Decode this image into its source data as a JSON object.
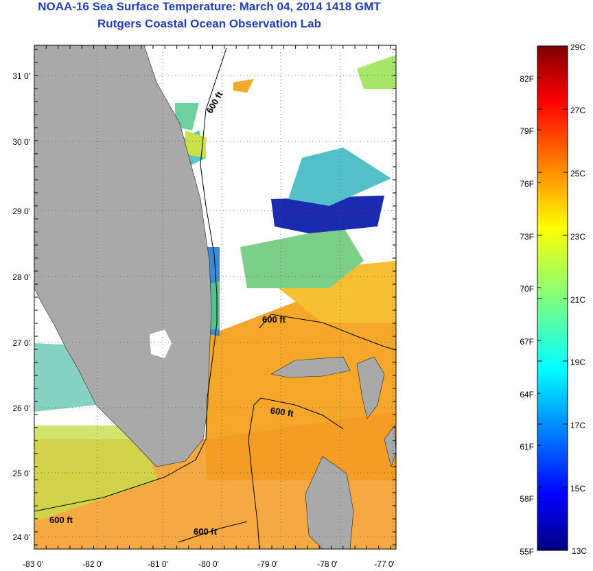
{
  "header": {
    "title": "NOAA-16 Sea Surface Temperature:  March 04, 2014 1418 GMT",
    "subtitle": "Rutgers Coastal Ocean Observation Lab"
  },
  "map": {
    "region": "Florida and Bahamas",
    "lat_labels": [
      "31 0'",
      "30 0'",
      "29 0'",
      "28 0'",
      "27 0'",
      "26 0'",
      "25 0'",
      "24 0'"
    ],
    "lon_labels": [
      "-83 0'",
      "-82 0'",
      "-81 0'",
      "-80 0'",
      "-79 0'",
      "-78 0'",
      "-77 0'"
    ],
    "contour_labels": [
      "600 ft",
      "600 ft",
      "600 ft",
      "600 ft",
      "600 ft"
    ],
    "colors": {
      "land": "#a9a9a9",
      "title": "#1f3fbf"
    }
  },
  "colorbar": {
    "celsius_labels": [
      "29C",
      "27C",
      "25C",
      "23C",
      "21C",
      "19C",
      "17C",
      "15C",
      "13C"
    ],
    "fahrenheit_labels": [
      "82F",
      "79F",
      "76F",
      "73F",
      "70F",
      "67F",
      "64F",
      "61F",
      "58F",
      "55F"
    ],
    "colors": [
      "#00007f",
      "#0000ff",
      "#007fff",
      "#00ffff",
      "#7fff7f",
      "#ffff00",
      "#ff7f00",
      "#ff0000",
      "#7f0000"
    ]
  }
}
